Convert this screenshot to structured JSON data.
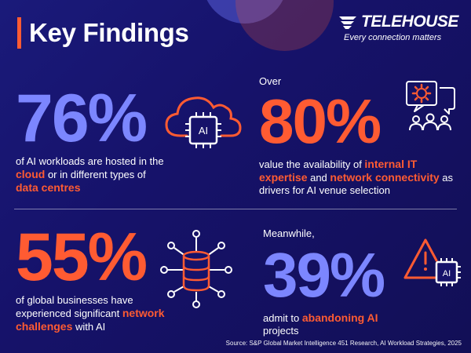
{
  "header": {
    "title": "Key Findings"
  },
  "logo": {
    "name": "TELEHOUSE",
    "tagline": "Every connection matters"
  },
  "stats": [
    {
      "value": "76%",
      "desc_parts": [
        {
          "text": "of AI workloads are hosted in the ",
          "hl": false
        },
        {
          "text": "cloud",
          "hl": true
        },
        {
          "text": " or in different types of ",
          "hl": false
        },
        {
          "text": "data centres",
          "hl": true
        }
      ]
    },
    {
      "pre": "Over",
      "value": "80%",
      "desc_parts": [
        {
          "text": "value the availability of ",
          "hl": false
        },
        {
          "text": "internal IT expertise",
          "hl": true
        },
        {
          "text": " and ",
          "hl": false
        },
        {
          "text": "network connectivity",
          "hl": true
        },
        {
          "text": " as drivers for AI venue selection",
          "hl": false
        }
      ]
    },
    {
      "value": "55%",
      "desc_parts": [
        {
          "text": "of global businesses have experienced significant ",
          "hl": false
        },
        {
          "text": "network challenges",
          "hl": true
        },
        {
          "text": " with AI",
          "hl": false
        }
      ]
    },
    {
      "pre": "Meanwhile,",
      "value": "39%",
      "desc_parts": [
        {
          "text": "admit to ",
          "hl": false
        },
        {
          "text": "abandoning AI",
          "hl": true
        },
        {
          "text": " projects",
          "hl": false
        }
      ]
    }
  ],
  "icons": {
    "cloud_chip_label": "AI",
    "warn_chip_label": "AI"
  },
  "source": "Source: S&P Global Market Intelligence 451 Research, AI Workload Strategies, 2025",
  "colors": {
    "accent": "#ff5b32",
    "blue": "#7c86ff",
    "background": "#16126a"
  }
}
